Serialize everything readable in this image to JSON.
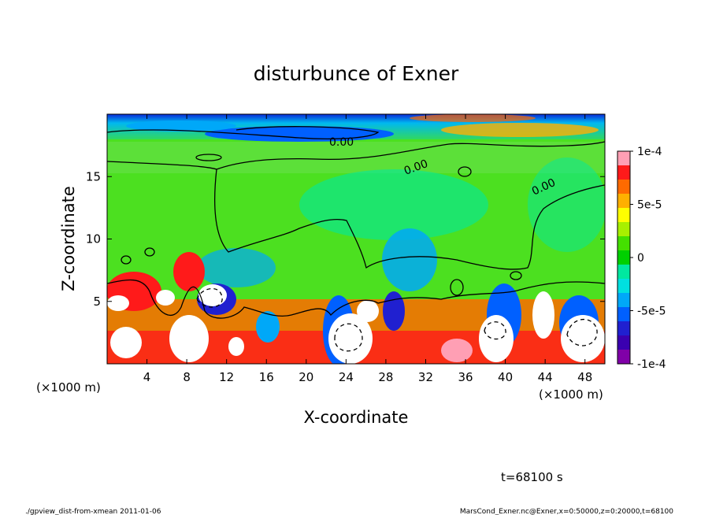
{
  "chart_data": {
    "type": "heatmap",
    "title": "disturbunce of Exner",
    "xlabel": "X-coordinate",
    "ylabel": "Z-coordinate",
    "x_unit": "(×1000 m)",
    "y_unit": "(×1000 m)",
    "xlim": [
      0,
      50
    ],
    "ylim": [
      0,
      20
    ],
    "x_ticks": [
      4,
      8,
      12,
      16,
      20,
      24,
      28,
      32,
      36,
      40,
      44,
      48
    ],
    "y_ticks": [
      5,
      10,
      15
    ],
    "colorbar": {
      "min": -0.0001,
      "max": 0.0001,
      "tick_values": [
        0.0001,
        5e-05,
        0,
        -5e-05,
        -0.0001
      ],
      "tick_labels": [
        "1e-4",
        "5e-5",
        "0",
        "-5e-5",
        "-1e-4"
      ],
      "colors": [
        "#ff9fb4",
        "#ff1a1a",
        "#ff6a00",
        "#ffb000",
        "#ffff00",
        "#a8f000",
        "#44e000",
        "#00d000",
        "#00e8a0",
        "#00e0e0",
        "#00a8f8",
        "#0060ff",
        "#2020d0",
        "#3a00b0",
        "#8000a8"
      ]
    },
    "contour_labels": [
      "0.00",
      "0.00",
      "0.00"
    ],
    "annotation_time": "t=68100 s",
    "footer_left": "./gpview_dist-from-xmean  2011-01-06",
    "footer_right": "MarsCond_Exner.nc@Exner,x=0:50000,z=0:20000,t=68100"
  }
}
